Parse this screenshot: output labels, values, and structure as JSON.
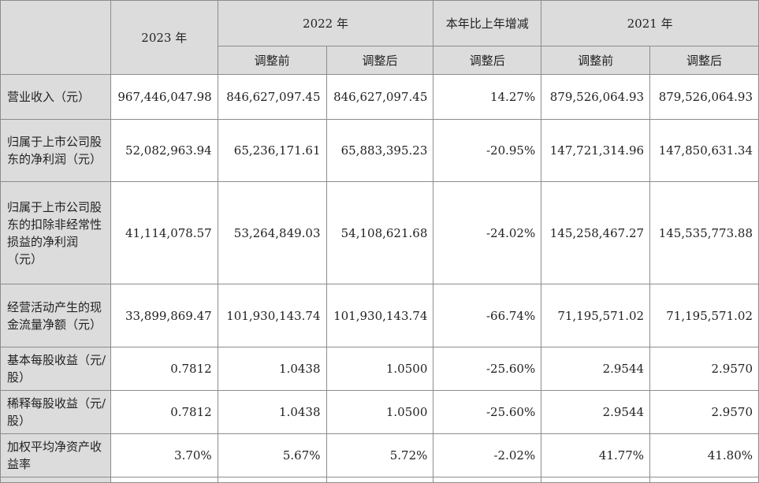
{
  "header": {
    "year_2023": "2023 年",
    "year_2022": "2022 年",
    "yoy_change": "本年比上年增减",
    "year_2021": "2021 年",
    "before_adjustment": "调整前",
    "after_adjustment": "调整后"
  },
  "rows": [
    {
      "label": "营业收入（元）",
      "v2023": "967,446,047.98",
      "v2022_before": "846,627,097.45",
      "v2022_after": "846,627,097.45",
      "change": "14.27%",
      "v2021_before": "879,526,064.93",
      "v2021_after": "879,526,064.93"
    },
    {
      "label": "归属于上市公司股东的净利润（元）",
      "v2023": "52,082,963.94",
      "v2022_before": "65,236,171.61",
      "v2022_after": "65,883,395.23",
      "change": "-20.95%",
      "v2021_before": "147,721,314.96",
      "v2021_after": "147,850,631.34"
    },
    {
      "label": "归属于上市公司股东的扣除非经常性损益的净利润（元）",
      "v2023": "41,114,078.57",
      "v2022_before": "53,264,849.03",
      "v2022_after": "54,108,621.68",
      "change": "-24.02%",
      "v2021_before": "145,258,467.27",
      "v2021_after": "145,535,773.88"
    },
    {
      "label": "经营活动产生的现金流量净额（元）",
      "v2023": "33,899,869.47",
      "v2022_before": "101,930,143.74",
      "v2022_after": "101,930,143.74",
      "change": "-66.74%",
      "v2021_before": "71,195,571.02",
      "v2021_after": "71,195,571.02"
    },
    {
      "label": "基本每股收益（元/股）",
      "v2023": "0.7812",
      "v2022_before": "1.0438",
      "v2022_after": "1.0500",
      "change": "-25.60%",
      "v2021_before": "2.9544",
      "v2021_after": "2.9570"
    },
    {
      "label": "稀释每股收益（元/股）",
      "v2023": "0.7812",
      "v2022_before": "1.0438",
      "v2022_after": "1.0500",
      "change": "-25.60%",
      "v2021_before": "2.9544",
      "v2021_after": "2.9570"
    },
    {
      "label": "加权平均净资产收益率",
      "v2023": "3.70%",
      "v2022_before": "5.67%",
      "v2022_after": "5.72%",
      "change": "-2.02%",
      "v2021_before": "41.77%",
      "v2021_after": "41.80%"
    }
  ]
}
